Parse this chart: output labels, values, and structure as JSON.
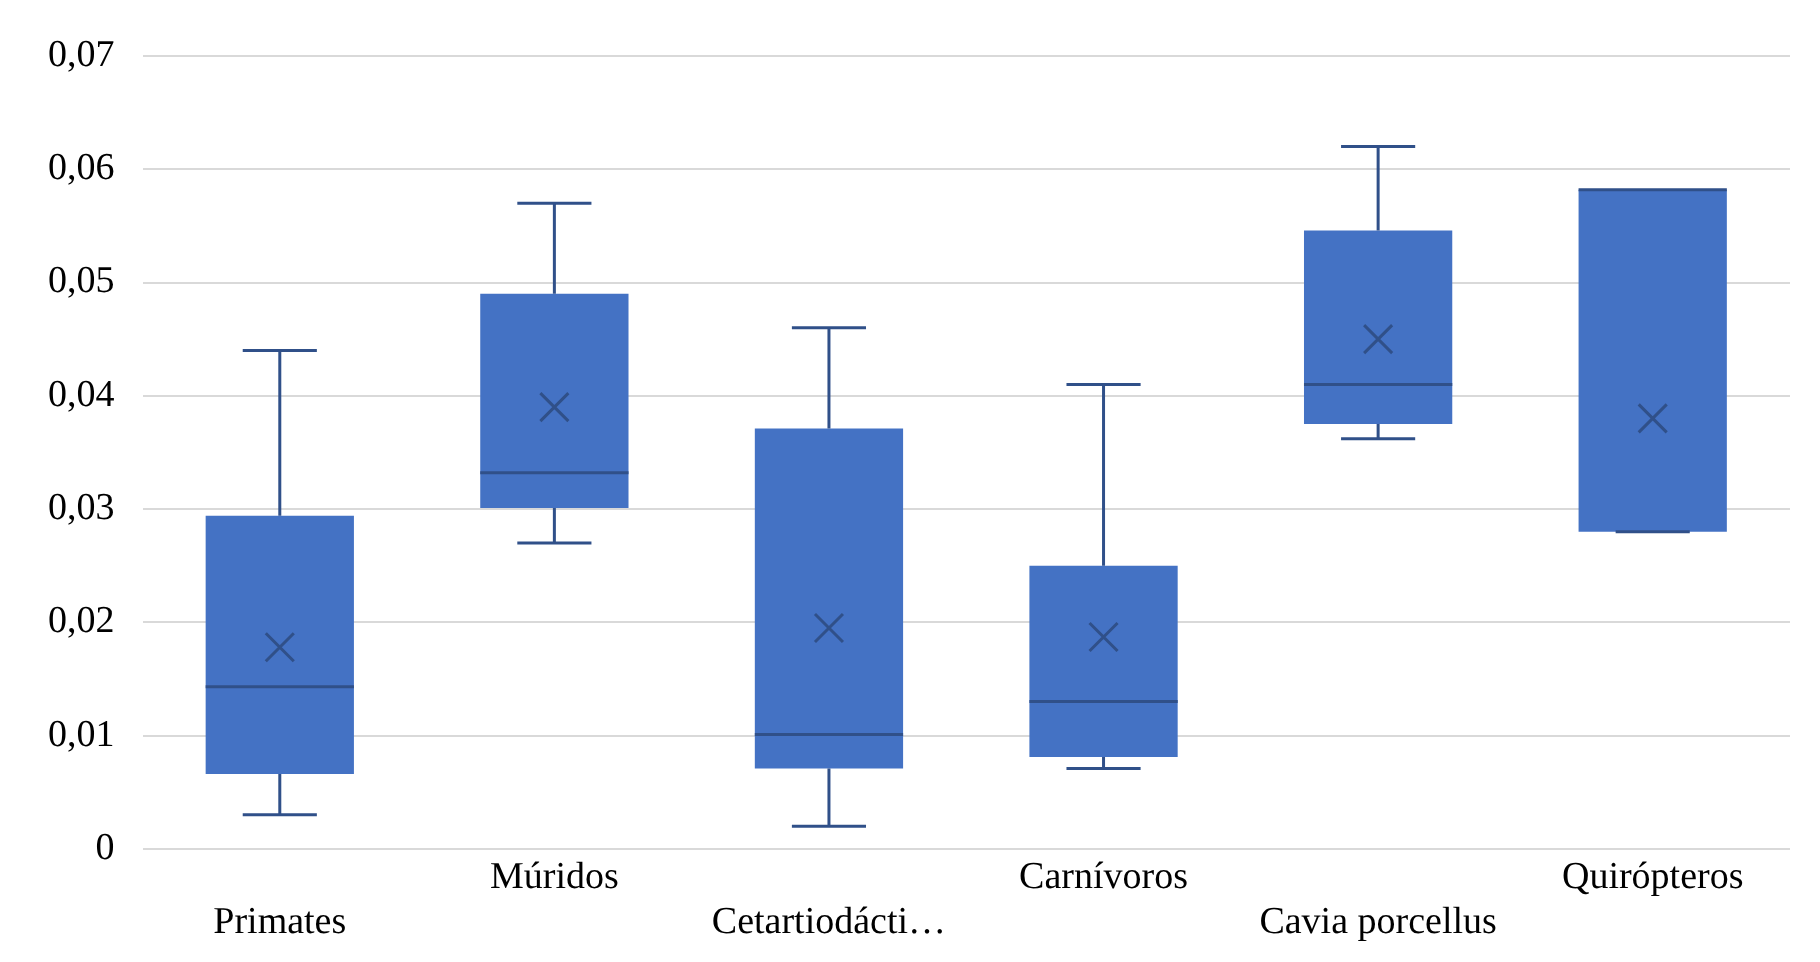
{
  "chart_data": {
    "type": "box",
    "categories": [
      "Primates",
      "Múridos",
      "Cetartiodácti…",
      "Carnívoros",
      "Cavia porcellus",
      "Quirópteros"
    ],
    "color": "#4472c4",
    "boxes": [
      {
        "low": 0.003,
        "q1": 0.0066,
        "median": 0.0143,
        "q3": 0.0294,
        "high": 0.044,
        "mean": 0.0178
      },
      {
        "low": 0.027,
        "q1": 0.0301,
        "median": 0.0332,
        "q3": 0.049,
        "high": 0.057,
        "mean": 0.039
      },
      {
        "low": 0.002,
        "q1": 0.0071,
        "median": 0.0101,
        "q3": 0.0371,
        "high": 0.046,
        "mean": 0.0195
      },
      {
        "low": 0.0071,
        "q1": 0.0081,
        "median": 0.013,
        "q3": 0.025,
        "high": 0.041,
        "mean": 0.0187
      },
      {
        "low": 0.0362,
        "q1": 0.0375,
        "median": 0.041,
        "q3": 0.0546,
        "high": 0.062,
        "mean": 0.045
      },
      {
        "low": 0.028,
        "q1": 0.028,
        "median": 0.0582,
        "q3": 0.0582,
        "high": 0.0582,
        "mean": 0.038
      }
    ],
    "ylim": [
      0,
      0.07
    ],
    "yticks": [
      0,
      {
        "value": 0.01,
        "label": "0,01"
      },
      {
        "value": 0.02,
        "label": "0,02"
      },
      {
        "value": 0.03,
        "label": "0,03"
      },
      {
        "value": 0.04,
        "label": "0,04"
      },
      {
        "value": 0.05,
        "label": "0,05"
      },
      {
        "value": 0.06,
        "label": "0,06"
      },
      {
        "value": 0.07,
        "label": "0,07"
      }
    ],
    "grid": "y"
  }
}
